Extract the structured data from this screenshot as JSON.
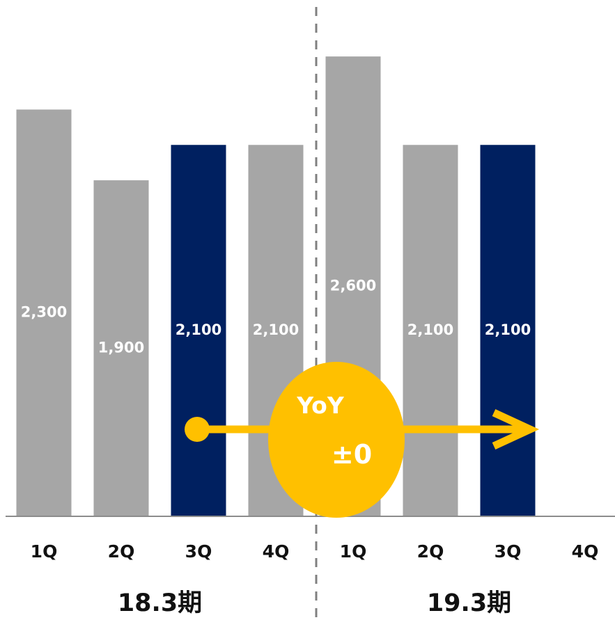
{
  "chart_data": {
    "type": "bar",
    "categories": [
      "1Q",
      "2Q",
      "3Q",
      "4Q",
      "1Q",
      "2Q",
      "3Q",
      "4Q"
    ],
    "values": [
      2300,
      1900,
      2100,
      2100,
      2600,
      2100,
      2100,
      null
    ],
    "value_labels": [
      "2,300",
      "1,900",
      "2,100",
      "2,100",
      "2,600",
      "2,100",
      "2,100",
      ""
    ],
    "periods": [
      {
        "label": "18.3期",
        "first_index": 0,
        "last_index": 3
      },
      {
        "label": "19.3期",
        "first_index": 4,
        "last_index": 7
      }
    ],
    "highlight_indices": [
      2,
      6
    ],
    "colors": {
      "bar": "#a6a6a6",
      "highlight": "#002060",
      "accent": "#ffc000",
      "divider": "#808080",
      "axis": "#8c8c8c"
    },
    "ylim": [
      0,
      2880
    ],
    "grid": false,
    "annotation": {
      "title": "YoY",
      "value": "±0",
      "from_index": 2,
      "to_index": 6
    }
  }
}
